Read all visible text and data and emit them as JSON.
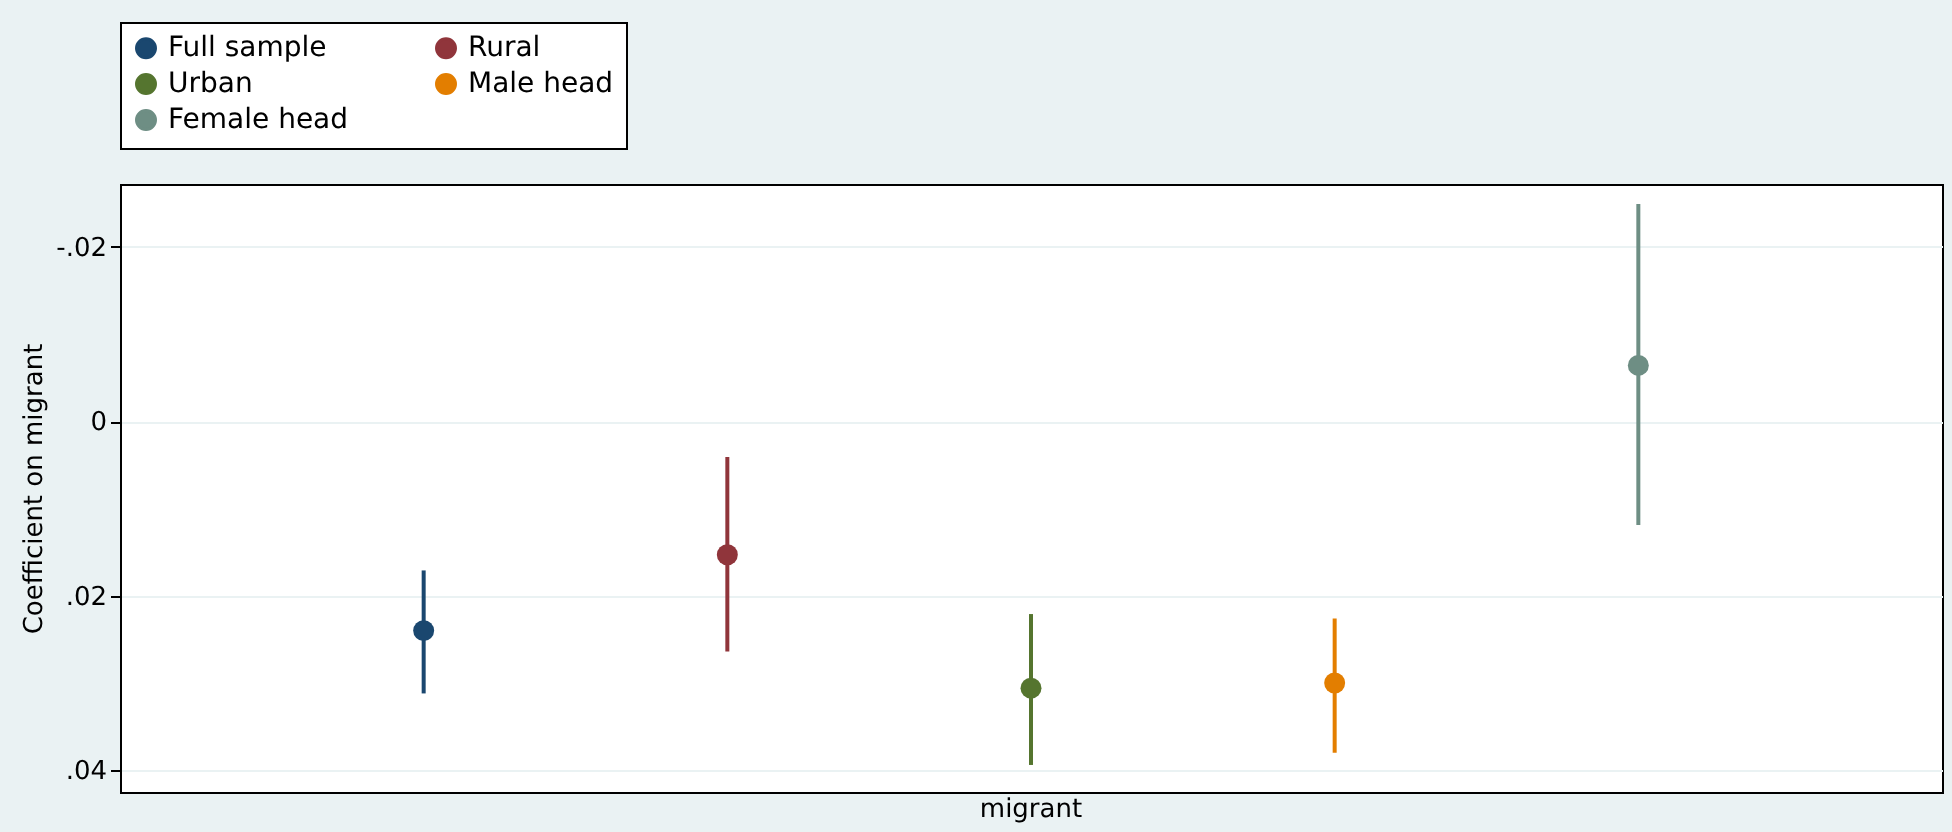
{
  "chart_data": {
    "type": "scatter",
    "ylabel": "Coefficient on migrant",
    "categories": [
      null,
      null,
      "migrant",
      null,
      null
    ],
    "ylim": [
      0.0425,
      -0.0272
    ],
    "yticks": [
      {
        "value": -0.02,
        "label": "-.02"
      },
      {
        "value": 0,
        "label": "0"
      },
      {
        "value": 0.02,
        "label": ".02"
      },
      {
        "value": 0.04,
        "label": ".04"
      }
    ],
    "grid": "y",
    "legend": "top",
    "marker": "circle",
    "series": [
      {
        "name": "Full sample",
        "color": "#1a476f",
        "values": [
          0.024,
          null,
          null,
          null,
          null
        ],
        "errors": [
          [
            0.0171,
            0.0312
          ],
          null,
          null,
          null,
          null
        ]
      },
      {
        "name": "Rural",
        "color": "#90353b",
        "values": [
          null,
          0.0153,
          null,
          null,
          null
        ],
        "errors": [
          null,
          [
            0.0041,
            0.0264
          ],
          null,
          null,
          null
        ]
      },
      {
        "name": "Urban",
        "color": "#55752f",
        "values": [
          null,
          null,
          0.0306,
          null,
          null
        ],
        "errors": [
          null,
          null,
          [
            0.0221,
            0.0394
          ],
          null,
          null
        ]
      },
      {
        "name": "Male head",
        "color": "#e37e00",
        "values": [
          null,
          null,
          null,
          0.03,
          null
        ],
        "errors": [
          null,
          null,
          null,
          [
            0.0226,
            0.038
          ],
          null
        ]
      },
      {
        "name": "Female head",
        "color": "#6e8e84",
        "values": [
          null,
          null,
          null,
          null,
          -0.0064
        ],
        "errors": [
          null,
          null,
          null,
          null,
          [
            -0.0249,
            0.0119
          ]
        ]
      }
    ]
  }
}
